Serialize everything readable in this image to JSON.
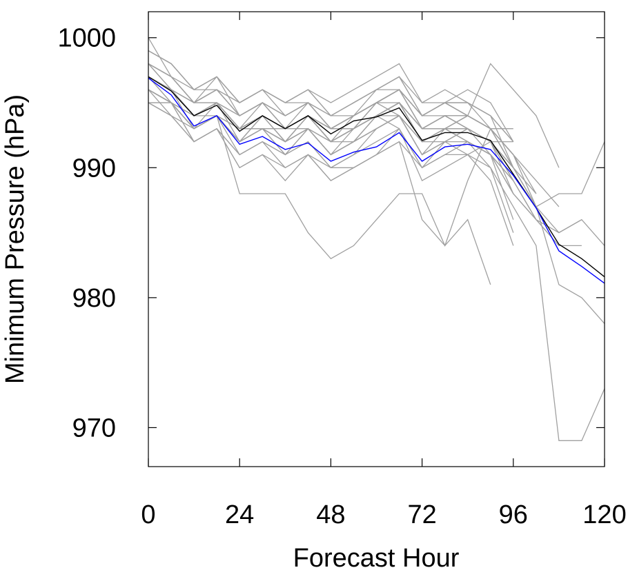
{
  "chart_data": {
    "type": "line",
    "title": "",
    "xlabel": "Forecast Hour",
    "ylabel": "Minimum Pressure (hPa)",
    "xlim": [
      0,
      120
    ],
    "ylim": [
      967,
      1002
    ],
    "x_ticks": [
      0,
      24,
      48,
      72,
      96,
      120
    ],
    "y_ticks": [
      970,
      980,
      990,
      1000
    ],
    "x_tick_labels": [
      "0",
      "24",
      "48",
      "72",
      "96",
      "120"
    ],
    "y_tick_labels": [
      "970",
      "980",
      "990",
      "1000"
    ],
    "grid": false,
    "legend": "none",
    "colors": {
      "members": "#a0a0a0",
      "ensemble_mean": "#000000",
      "mean_2": "#0000ff"
    },
    "x": [
      0,
      6,
      12,
      18,
      24,
      30,
      36,
      42,
      48,
      54,
      60,
      66,
      72,
      78,
      84,
      90,
      96,
      102,
      108,
      114,
      120
    ],
    "members": [
      {
        "values": [
          998,
          997,
          995,
          996,
          994,
          995,
          994,
          995,
          993,
          994,
          995,
          996,
          993,
          994,
          993,
          992,
          990,
          null,
          null,
          null,
          null
        ]
      },
      {
        "values": [
          997,
          996,
          994,
          995,
          993,
          994,
          993,
          994,
          992,
          993,
          994,
          995,
          992,
          993,
          994,
          993,
          991,
          987,
          985,
          986,
          984
        ]
      },
      {
        "values": [
          996,
          995,
          993,
          994,
          992,
          993,
          992,
          993,
          991,
          992,
          993,
          994,
          991,
          992,
          993,
          992,
          989,
          null,
          null,
          null,
          null
        ]
      },
      {
        "values": [
          999,
          998,
          996,
          997,
          995,
          996,
          995,
          996,
          994,
          995,
          996,
          997,
          994,
          995,
          994,
          993,
          991,
          null,
          null,
          null,
          null
        ]
      },
      {
        "values": [
          995,
          995,
          994,
          995,
          993,
          994,
          993,
          994,
          992,
          993,
          994,
          995,
          992,
          993,
          994,
          993,
          990,
          987,
          981,
          980,
          978
        ]
      },
      {
        "values": [
          1000,
          997,
          995,
          996,
          994,
          995,
          993,
          995,
          993,
          994,
          995,
          994,
          991,
          993,
          992,
          991,
          988,
          null,
          null,
          null,
          null
        ]
      },
      {
        "values": [
          997,
          996,
          994,
          995,
          993,
          994,
          992,
          994,
          992,
          993,
          994,
          995,
          993,
          994,
          993,
          992,
          988,
          986,
          984,
          null,
          null
        ]
      },
      {
        "values": [
          996,
          995,
          993,
          994,
          992,
          993,
          991,
          993,
          991,
          992,
          993,
          994,
          991,
          992,
          991,
          990,
          987,
          984,
          969,
          969,
          973
        ]
      },
      {
        "values": [
          998,
          997,
          995,
          997,
          994,
          995,
          994,
          995,
          993,
          994,
          996,
          997,
          995,
          995,
          996,
          995,
          992,
          null,
          null,
          null,
          null
        ]
      },
      {
        "values": [
          997,
          996,
          994,
          995,
          993,
          993,
          992,
          993,
          991,
          993,
          994,
          995,
          993,
          994,
          993,
          992,
          989,
          986,
          null,
          null,
          null
        ]
      },
      {
        "values": [
          998,
          996,
          994,
          995,
          993,
          995,
          993,
          994,
          992,
          994,
          995,
          996,
          994,
          995,
          994,
          993,
          990,
          987,
          null,
          null,
          null
        ]
      },
      {
        "values": [
          996,
          994,
          992,
          993,
          991,
          992,
          991,
          992,
          990,
          991,
          992,
          993,
          990,
          991,
          992,
          991,
          986,
          null,
          null,
          null,
          null
        ]
      },
      {
        "values": [
          995,
          994,
          993,
          994,
          992,
          993,
          992,
          994,
          992,
          993,
          994,
          993,
          990,
          992,
          993,
          992,
          990,
          987,
          988,
          988,
          992
        ]
      },
      {
        "values": [
          997,
          995,
          993,
          995,
          992,
          994,
          992,
          994,
          992,
          993,
          995,
          995,
          992,
          993,
          992,
          991,
          988,
          986,
          984,
          984,
          null
        ]
      },
      {
        "values": [
          996,
          995,
          993,
          994,
          991,
          992,
          991,
          992,
          990,
          991,
          993,
          994,
          992,
          993,
          992,
          990,
          985,
          null,
          null,
          null,
          null
        ]
      },
      {
        "values": [
          998,
          997,
          995,
          996,
          995,
          996,
          995,
          996,
          994,
          995,
          996,
          996,
          994,
          995,
          995,
          993,
          990,
          null,
          null,
          null,
          null
        ]
      },
      {
        "values": [
          997,
          996,
          994,
          995,
          993,
          994,
          992,
          993,
          991,
          992,
          993,
          994,
          992,
          993,
          992,
          991,
          989,
          null,
          null,
          null,
          null
        ]
      },
      {
        "values": [
          999,
          998,
          996,
          997,
          995,
          996,
          995,
          996,
          995,
          996,
          997,
          998,
          995,
          996,
          995,
          994,
          992,
          null,
          null,
          null,
          null
        ]
      },
      {
        "values": [
          996,
          995,
          993,
          994,
          992,
          993,
          992,
          993,
          991,
          992,
          994,
          995,
          993,
          994,
          994,
          993,
          991,
          989,
          987,
          null,
          null
        ]
      },
      {
        "values": [
          997,
          995,
          993,
          994,
          992,
          993,
          991,
          993,
          991,
          992,
          993,
          994,
          991,
          992,
          992,
          991,
          989,
          986,
          985,
          986,
          null
        ]
      },
      {
        "values": [
          995,
          994,
          992,
          993,
          991,
          992,
          990,
          991,
          989,
          990,
          991,
          992,
          990,
          991,
          991,
          989,
          984,
          null,
          null,
          null,
          null
        ]
      },
      {
        "values": [
          998,
          997,
          995,
          996,
          994,
          995,
          993,
          994,
          993,
          994,
          995,
          996,
          994,
          995,
          994,
          993,
          990,
          988,
          null,
          null,
          null
        ]
      },
      {
        "values": [
          997,
          996,
          994,
          995,
          993,
          994,
          993,
          994,
          992,
          993,
          995,
          996,
          993,
          994,
          993,
          992,
          989,
          null,
          null,
          null,
          null
        ]
      },
      {
        "values": [
          996,
          995,
          993,
          994,
          992,
          994,
          993,
          994,
          992,
          993,
          995,
          996,
          994,
          995,
          994,
          993,
          991,
          988,
          null,
          null,
          null
        ]
      },
      {
        "values": [
          999,
          998,
          996,
          997,
          995,
          996,
          994,
          995,
          994,
          995,
          996,
          997,
          994,
          995,
          995,
          994,
          992,
          null,
          null,
          null,
          null
        ]
      },
      {
        "values": [
          997,
          996,
          994,
          995,
          993,
          993,
          992,
          993,
          992,
          993,
          994,
          995,
          992,
          993,
          993,
          992,
          990,
          null,
          null,
          null,
          null
        ]
      },
      {
        "values": [
          998,
          996,
          995,
          996,
          994,
          995,
          993,
          994,
          993,
          994,
          995,
          996,
          993,
          994,
          994,
          993,
          991,
          null,
          null,
          null,
          null
        ]
      },
      {
        "values": [
          996,
          995,
          993,
          994,
          993,
          994,
          993,
          994,
          993,
          993,
          994,
          995,
          993,
          993,
          993,
          991,
          989,
          null,
          null,
          null,
          null
        ]
      },
      {
        "values": [
          997,
          996,
          995,
          995,
          994,
          995,
          994,
          995,
          993,
          994,
          995,
          996,
          994,
          995,
          995,
          994,
          990,
          null,
          null,
          null,
          null
        ]
      },
      {
        "values": [
          996,
          995,
          994,
          995,
          993,
          994,
          993,
          994,
          993,
          993,
          994,
          995,
          993,
          993,
          993,
          992,
          989,
          null,
          null,
          null,
          null
        ]
      },
      {
        "values": [
          998,
          997,
          996,
          996,
          995,
          996,
          995,
          995,
          994,
          994,
          995,
          996,
          994,
          994,
          994,
          993,
          991,
          null,
          null,
          null,
          null
        ]
      },
      {
        "values": [
          996,
          995,
          994,
          994,
          993,
          993,
          993,
          993,
          992,
          992,
          994,
          994,
          992,
          992,
          993,
          992,
          990,
          null,
          null,
          null,
          null
        ]
      },
      {
        "values": [
          995,
          995,
          992,
          993,
          990,
          991,
          989,
          991,
          989,
          990,
          991,
          993,
          989,
          990,
          991,
          992,
          992,
          null,
          null,
          null,
          null
        ]
      },
      {
        "values": [
          997,
          996,
          993,
          994,
          988,
          988,
          988,
          985,
          983,
          984,
          986,
          988,
          988,
          984,
          989,
          993,
          993,
          null,
          null,
          null,
          null
        ]
      },
      {
        "values": [
          996,
          995,
          992,
          993,
          990,
          991,
          990,
          991,
          990,
          990,
          991,
          992,
          986,
          984,
          986,
          981,
          null,
          null,
          null,
          null,
          null
        ]
      },
      {
        "values": [
          997,
          996,
          995,
          995,
          994,
          995,
          994,
          995,
          993,
          994,
          995,
          996,
          993,
          993,
          994,
          998,
          996,
          994,
          990,
          null,
          null
        ]
      }
    ],
    "series": [
      {
        "color": "#000000",
        "values": [
          997.0,
          995.9,
          994.0,
          994.8,
          992.8,
          994.0,
          993.0,
          994.0,
          992.6,
          993.6,
          993.9,
          994.6,
          992.1,
          992.7,
          992.7,
          992.1,
          989.5,
          986.9,
          984.1,
          983.0,
          981.6
        ]
      },
      {
        "color": "#0000ff",
        "values": [
          996.9,
          995.6,
          993.2,
          994.0,
          991.8,
          992.4,
          991.4,
          991.9,
          990.5,
          991.2,
          991.6,
          992.7,
          990.5,
          991.6,
          991.8,
          991.4,
          989.4,
          986.9,
          983.6,
          982.4,
          981.1
        ]
      }
    ]
  }
}
